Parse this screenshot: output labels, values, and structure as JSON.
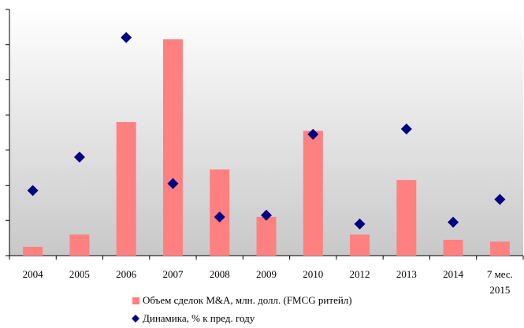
{
  "chart_data": {
    "type": "bar",
    "categories": [
      "2004",
      "2005",
      "2006",
      "2007",
      "2008",
      "2009",
      "2010",
      "2012",
      "2013",
      "2014",
      "7 мес. 2015"
    ],
    "series": [
      {
        "name": "Объем сделок M&A, млн. долл. (FMCG ритейл)",
        "type": "bar",
        "color": "#ff8080",
        "values": [
          0.25,
          0.6,
          3.8,
          6.15,
          2.45,
          1.1,
          3.55,
          0.6,
          2.15,
          0.45,
          0.4
        ]
      },
      {
        "name": "Динамика, % к пред. году",
        "type": "scatter",
        "color": "#000080",
        "values": [
          1.85,
          2.8,
          6.2,
          2.05,
          1.1,
          1.15,
          3.45,
          0.9,
          3.6,
          0.95,
          1.6
        ]
      }
    ],
    "ylim": [
      0,
      7
    ],
    "yticks": [
      0,
      1,
      2,
      3,
      4,
      5,
      6,
      7
    ]
  }
}
